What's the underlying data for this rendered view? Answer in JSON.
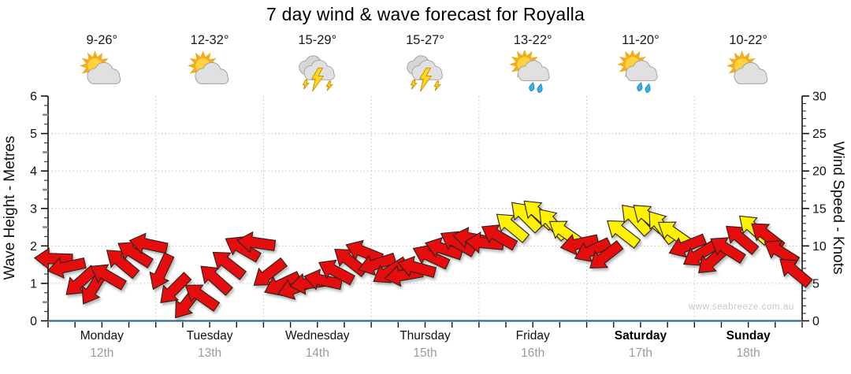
{
  "title": "7 day wind & wave forecast for Royalla",
  "watermark": "www.seabreeze.com.au",
  "left_axis": {
    "label": "Wave Height - Metres",
    "min": 0,
    "max": 6,
    "tick_step": 1,
    "unit": "m"
  },
  "right_axis": {
    "label": "Wind Speed - Knots",
    "min": 0,
    "max": 30,
    "tick_step": 5,
    "unit": "knots"
  },
  "days": [
    {
      "name": "Monday",
      "date": "12th",
      "temp": "9-26°",
      "icon": "partly-cloudy",
      "bold": false
    },
    {
      "name": "Tuesday",
      "date": "13th",
      "temp": "12-32°",
      "icon": "partly-cloudy",
      "bold": false
    },
    {
      "name": "Wednesday",
      "date": "14th",
      "temp": "15-29°",
      "icon": "thunderstorm",
      "bold": false
    },
    {
      "name": "Thursday",
      "date": "15th",
      "temp": "15-27°",
      "icon": "thunderstorm",
      "bold": false
    },
    {
      "name": "Friday",
      "date": "16th",
      "temp": "13-22°",
      "icon": "sun-showers",
      "bold": false
    },
    {
      "name": "Saturday",
      "date": "17th",
      "temp": "11-20°",
      "icon": "sun-showers",
      "bold": true
    },
    {
      "name": "Sunday",
      "date": "18th",
      "temp": "10-22°",
      "icon": "partly-cloudy",
      "bold": true
    }
  ],
  "chart_data": {
    "type": "wind-arrows",
    "title": "7 day wind & wave forecast for Royalla",
    "x_axis": {
      "unit": "days",
      "range": [
        0,
        7
      ],
      "day_boundary_gridlines": true,
      "minor_ticks_per_day": 4
    },
    "left_axis_range": [
      0,
      6
    ],
    "right_axis_range": [
      0,
      30
    ],
    "grid": "dotted",
    "legend": "none",
    "colors": {
      "red": "#e51010",
      "yellow": "#fff200",
      "arrow_outline": "#2a2118",
      "axis_bottom": "#336b93",
      "axis": "#111111",
      "grid": "#c0c0c0",
      "date_text": "#9b9b9b",
      "watermark_text": "#c8c8c8"
    },
    "point_format": [
      "day_fraction",
      "wind_knots",
      "arrow_rotation_deg",
      "color(r=red,y=yellow)"
    ],
    "points": [
      [
        0.05,
        8.3,
        -178,
        "r"
      ],
      [
        0.17,
        7.2,
        168,
        "r"
      ],
      [
        0.3,
        5.2,
        138,
        "r"
      ],
      [
        0.42,
        4.4,
        122,
        "r"
      ],
      [
        0.55,
        6.0,
        -150,
        "r"
      ],
      [
        0.68,
        7.8,
        -140,
        "r"
      ],
      [
        0.8,
        9.0,
        -148,
        "r"
      ],
      [
        0.93,
        10.2,
        -168,
        "r"
      ],
      [
        1.05,
        6.5,
        115,
        "r"
      ],
      [
        1.17,
        4.2,
        135,
        "r"
      ],
      [
        1.29,
        2.4,
        128,
        "r"
      ],
      [
        1.42,
        3.3,
        -145,
        "r"
      ],
      [
        1.55,
        5.6,
        -138,
        "r"
      ],
      [
        1.67,
        7.6,
        -142,
        "r"
      ],
      [
        1.8,
        9.7,
        -150,
        "r"
      ],
      [
        1.93,
        10.4,
        -172,
        "r"
      ],
      [
        2.05,
        6.3,
        142,
        "r"
      ],
      [
        2.17,
        4.9,
        155,
        "r"
      ],
      [
        2.3,
        4.4,
        160,
        "r"
      ],
      [
        2.42,
        5.0,
        172,
        "r"
      ],
      [
        2.55,
        5.4,
        -168,
        "r"
      ],
      [
        2.67,
        6.6,
        -152,
        "r"
      ],
      [
        2.8,
        8.0,
        -142,
        "r"
      ],
      [
        2.93,
        9.2,
        -158,
        "r"
      ],
      [
        3.05,
        7.6,
        162,
        "r"
      ],
      [
        3.17,
        6.6,
        148,
        "r"
      ],
      [
        3.3,
        6.1,
        170,
        "r"
      ],
      [
        3.42,
        7.1,
        -165,
        "r"
      ],
      [
        3.55,
        8.6,
        -155,
        "r"
      ],
      [
        3.67,
        9.6,
        -162,
        "r"
      ],
      [
        3.8,
        10.4,
        -150,
        "r"
      ],
      [
        3.93,
        11.0,
        -170,
        "r"
      ],
      [
        4.05,
        10.4,
        -175,
        "r"
      ],
      [
        4.18,
        11.3,
        -150,
        "r"
      ],
      [
        4.3,
        12.6,
        -140,
        "y"
      ],
      [
        4.43,
        14.0,
        -135,
        "y"
      ],
      [
        4.55,
        14.3,
        -138,
        "y"
      ],
      [
        4.68,
        13.0,
        -132,
        "y"
      ],
      [
        4.8,
        11.8,
        -145,
        "y"
      ],
      [
        4.93,
        10.3,
        168,
        "r"
      ],
      [
        5.05,
        9.4,
        155,
        "r"
      ],
      [
        5.17,
        8.6,
        142,
        "r"
      ],
      [
        5.33,
        11.8,
        -142,
        "y"
      ],
      [
        5.45,
        13.6,
        -133,
        "y"
      ],
      [
        5.57,
        13.8,
        -140,
        "y"
      ],
      [
        5.69,
        12.6,
        -128,
        "y"
      ],
      [
        5.81,
        11.7,
        -145,
        "y"
      ],
      [
        5.93,
        10.0,
        158,
        "r"
      ],
      [
        6.05,
        8.9,
        148,
        "r"
      ],
      [
        6.17,
        8.1,
        138,
        "r"
      ],
      [
        6.3,
        9.6,
        -148,
        "r"
      ],
      [
        6.43,
        11.0,
        -140,
        "r"
      ],
      [
        6.55,
        12.3,
        -138,
        "y"
      ],
      [
        6.67,
        11.4,
        -142,
        "r"
      ],
      [
        6.8,
        9.2,
        -148,
        "r"
      ],
      [
        6.93,
        6.6,
        -140,
        "r"
      ]
    ]
  }
}
